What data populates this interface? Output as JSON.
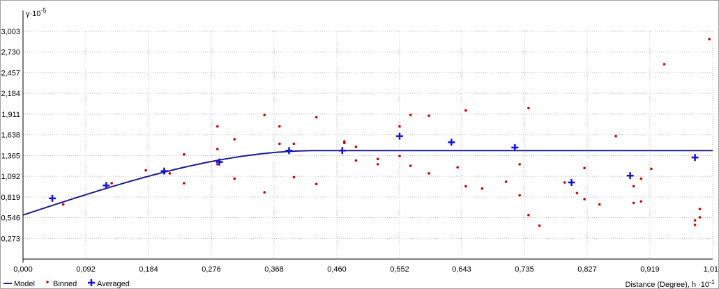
{
  "colors": {
    "model": "#1c1c8c",
    "binned": "#d40000",
    "averaged": "#1010e0",
    "grid": "#b8b8b8"
  },
  "chart_data": {
    "type": "scatter",
    "ylabel": "γ·10",
    "ylabel_exp": "-5",
    "xlabel": "Distance (Degree), h ·10",
    "xlabel_exp": "-1",
    "xlim": [
      0,
      1.011
    ],
    "ylim": [
      0,
      3.003
    ],
    "x_ticks": [
      "0,000",
      "0,092",
      "0,184",
      "0,276",
      "0,368",
      "0,460",
      "0,552",
      "0,643",
      "0,735",
      "0,827",
      "0,919",
      "1,011"
    ],
    "y_ticks": [
      "0,273",
      "0,546",
      "0,819",
      "1,092",
      "1,365",
      "1,638",
      "1,911",
      "2,184",
      "2,457",
      "2,730",
      "3,003"
    ],
    "grid": true,
    "legend": {
      "position": "bottom-left",
      "items": [
        {
          "name": "Model",
          "marker": "line"
        },
        {
          "name": "Binned",
          "marker": "dot"
        },
        {
          "name": "Averaged",
          "marker": "plus"
        }
      ]
    },
    "series": [
      {
        "name": "Model",
        "type": "line",
        "nugget": 0.58,
        "sill": 1.43,
        "range": 0.43,
        "points": [
          [
            0,
            0.58
          ],
          [
            1.011,
            1.43
          ]
        ]
      },
      {
        "name": "Binned",
        "type": "scatter",
        "points": [
          [
            0.059,
            0.72
          ],
          [
            0.13,
            1.0
          ],
          [
            0.18,
            1.17
          ],
          [
            0.215,
            1.13
          ],
          [
            0.236,
            1.38
          ],
          [
            0.236,
            1.0
          ],
          [
            0.285,
            1.75
          ],
          [
            0.285,
            1.45
          ],
          [
            0.285,
            1.25
          ],
          [
            0.31,
            1.58
          ],
          [
            0.31,
            1.06
          ],
          [
            0.354,
            1.9
          ],
          [
            0.354,
            0.88
          ],
          [
            0.376,
            1.75
          ],
          [
            0.376,
            1.52
          ],
          [
            0.397,
            1.52
          ],
          [
            0.397,
            1.08
          ],
          [
            0.43,
            1.87
          ],
          [
            0.43,
            0.99
          ],
          [
            0.471,
            1.55
          ],
          [
            0.471,
            1.53
          ],
          [
            0.488,
            1.48
          ],
          [
            0.488,
            1.3
          ],
          [
            0.52,
            1.32
          ],
          [
            0.52,
            1.25
          ],
          [
            0.552,
            1.75
          ],
          [
            0.552,
            1.36
          ],
          [
            0.568,
            1.9
          ],
          [
            0.568,
            1.23
          ],
          [
            0.595,
            1.89
          ],
          [
            0.595,
            1.13
          ],
          [
            0.637,
            1.21
          ],
          [
            0.649,
            1.96
          ],
          [
            0.649,
            0.96
          ],
          [
            0.673,
            0.93
          ],
          [
            0.708,
            1.02
          ],
          [
            0.728,
            1.25
          ],
          [
            0.728,
            0.84
          ],
          [
            0.741,
            1.99
          ],
          [
            0.741,
            0.58
          ],
          [
            0.757,
            0.44
          ],
          [
            0.794,
            1.01
          ],
          [
            0.812,
            0.87
          ],
          [
            0.823,
            1.2
          ],
          [
            0.823,
            0.79
          ],
          [
            0.845,
            0.72
          ],
          [
            0.869,
            1.62
          ],
          [
            0.895,
            0.96
          ],
          [
            0.895,
            0.74
          ],
          [
            0.906,
            1.06
          ],
          [
            0.906,
            0.76
          ],
          [
            0.921,
            1.19
          ],
          [
            0.94,
            2.57
          ],
          [
            0.985,
            0.51
          ],
          [
            0.985,
            0.45
          ],
          [
            0.992,
            0.55
          ],
          [
            0.992,
            0.66
          ],
          [
            1.006,
            2.9
          ]
        ]
      },
      {
        "name": "Averaged",
        "type": "scatter",
        "points": [
          [
            0.043,
            0.8
          ],
          [
            0.122,
            0.97
          ],
          [
            0.207,
            1.16
          ],
          [
            0.288,
            1.28
          ],
          [
            0.39,
            1.43
          ],
          [
            0.468,
            1.43
          ],
          [
            0.552,
            1.62
          ],
          [
            0.628,
            1.54
          ],
          [
            0.721,
            1.47
          ],
          [
            0.804,
            1.01
          ],
          [
            0.89,
            1.1
          ],
          [
            0.985,
            1.34
          ]
        ]
      }
    ]
  }
}
